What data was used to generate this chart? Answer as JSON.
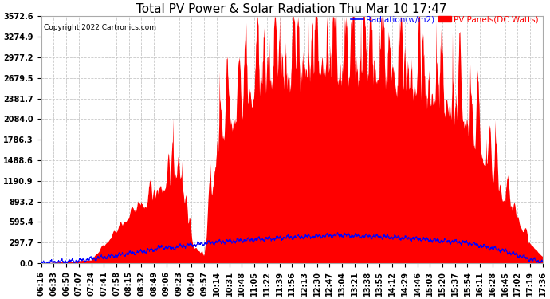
{
  "title": "Total PV Power & Solar Radiation Thu Mar 10 17:47",
  "copyright": "Copyright 2022 Cartronics.com",
  "legend_radiation": "Radiation(w/m2)",
  "legend_pv": "PV Panels(DC Watts)",
  "ylabel_values": [
    0.0,
    297.7,
    595.4,
    893.2,
    1190.9,
    1488.6,
    1786.3,
    2084.0,
    2381.7,
    2679.5,
    2977.2,
    3274.9,
    3572.6
  ],
  "ymax": 3572.6,
  "ymin": 0.0,
  "background_color": "#ffffff",
  "plot_bg_color": "#ffffff",
  "grid_color": "#c8c8c8",
  "pv_color": "#ff0000",
  "radiation_color": "#0000ff",
  "title_fontsize": 11,
  "tick_fontsize": 7,
  "x_labels": [
    "06:16",
    "06:33",
    "06:50",
    "07:07",
    "07:24",
    "07:41",
    "07:58",
    "08:15",
    "08:32",
    "08:49",
    "09:06",
    "09:23",
    "09:40",
    "09:57",
    "10:14",
    "10:31",
    "10:48",
    "11:05",
    "11:22",
    "11:39",
    "11:56",
    "12:13",
    "12:30",
    "12:47",
    "13:04",
    "13:21",
    "13:38",
    "13:55",
    "14:12",
    "14:29",
    "14:46",
    "15:03",
    "15:20",
    "15:37",
    "15:54",
    "16:11",
    "16:28",
    "16:45",
    "17:02",
    "17:19",
    "17:36"
  ]
}
